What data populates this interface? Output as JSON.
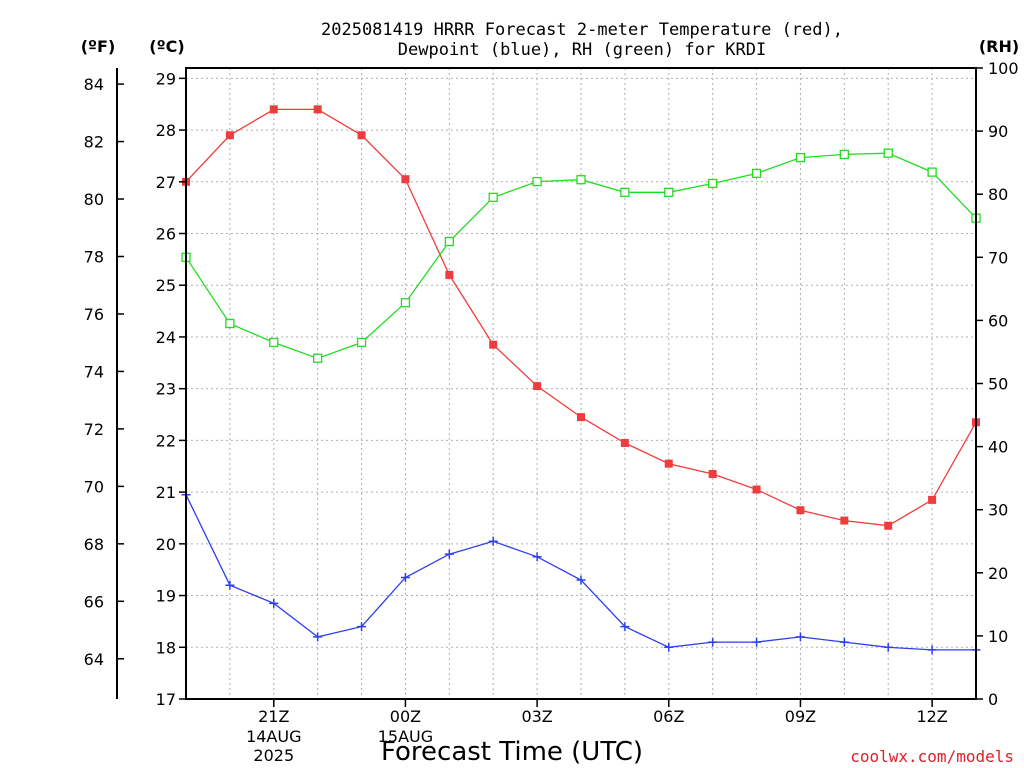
{
  "title_line1": "2025081419 HRRR Forecast 2-meter Temperature (red),",
  "title_line2": "Dewpoint (blue), RH (green) for KRDI",
  "units": {
    "f": "(ºF)",
    "c": "(ºC)",
    "rh": "(RH)"
  },
  "credit": "coolwx.com/models",
  "colors": {
    "temperature": "#f03c3c",
    "dewpoint": "#2e3ff0",
    "rh": "#22dd22"
  },
  "chart_data": {
    "type": "line",
    "title": "2025081419 HRRR Forecast 2-meter Temperature (red), Dewpoint (blue), RH (green) for KRDI",
    "xlabel": "Forecast Time (UTC)",
    "x": [
      "19Z",
      "20Z",
      "21Z",
      "22Z",
      "23Z",
      "00Z",
      "01Z",
      "02Z",
      "03Z",
      "04Z",
      "05Z",
      "06Z",
      "07Z",
      "08Z",
      "09Z",
      "10Z",
      "11Z",
      "12Z",
      "13Z"
    ],
    "x_ticks": [
      {
        "label": "21Z",
        "sub": [
          "14AUG",
          "2025"
        ]
      },
      {
        "label": "00Z",
        "sub": [
          "15AUG"
        ]
      },
      {
        "label": "03Z",
        "sub": []
      },
      {
        "label": "06Z",
        "sub": []
      },
      {
        "label": "09Z",
        "sub": []
      },
      {
        "label": "12Z",
        "sub": []
      }
    ],
    "y_left_c": {
      "label": "(ºC)",
      "ylim": [
        17,
        29.2
      ],
      "ticks": [
        17,
        18,
        19,
        20,
        21,
        22,
        23,
        24,
        25,
        26,
        27,
        28,
        29
      ]
    },
    "y_left_f": {
      "label": "(ºF)",
      "ticks": [
        64,
        66,
        68,
        70,
        72,
        74,
        76,
        78,
        80,
        82,
        84
      ]
    },
    "y_right_rh": {
      "label": "(RH)",
      "ylim": [
        0,
        100
      ],
      "ticks": [
        0,
        10,
        20,
        30,
        40,
        50,
        60,
        70,
        80,
        90,
        100
      ]
    },
    "series": [
      {
        "name": "Temperature",
        "axis": "c",
        "marker": "filled-square",
        "values": [
          27.0,
          27.9,
          28.4,
          28.4,
          27.9,
          27.05,
          25.2,
          23.85,
          23.05,
          22.45,
          21.95,
          21.55,
          21.35,
          21.05,
          20.65,
          20.45,
          20.35,
          20.85,
          22.35
        ]
      },
      {
        "name": "Dewpoint",
        "axis": "c",
        "marker": "plus",
        "values": [
          20.95,
          19.2,
          18.85,
          18.2,
          18.4,
          19.35,
          19.8,
          20.05,
          19.75,
          19.3,
          18.4,
          18.0,
          18.1,
          18.1,
          18.2,
          18.1,
          18.0,
          17.95,
          17.95
        ]
      },
      {
        "name": "Relative Humidity",
        "axis": "rh",
        "marker": "open-square",
        "values": [
          70.0,
          59.5,
          56.5,
          54.0,
          56.5,
          62.8,
          72.5,
          79.5,
          82.0,
          82.3,
          80.3,
          80.3,
          81.7,
          83.3,
          85.8,
          86.3,
          86.5,
          83.5,
          76.2
        ]
      }
    ]
  }
}
